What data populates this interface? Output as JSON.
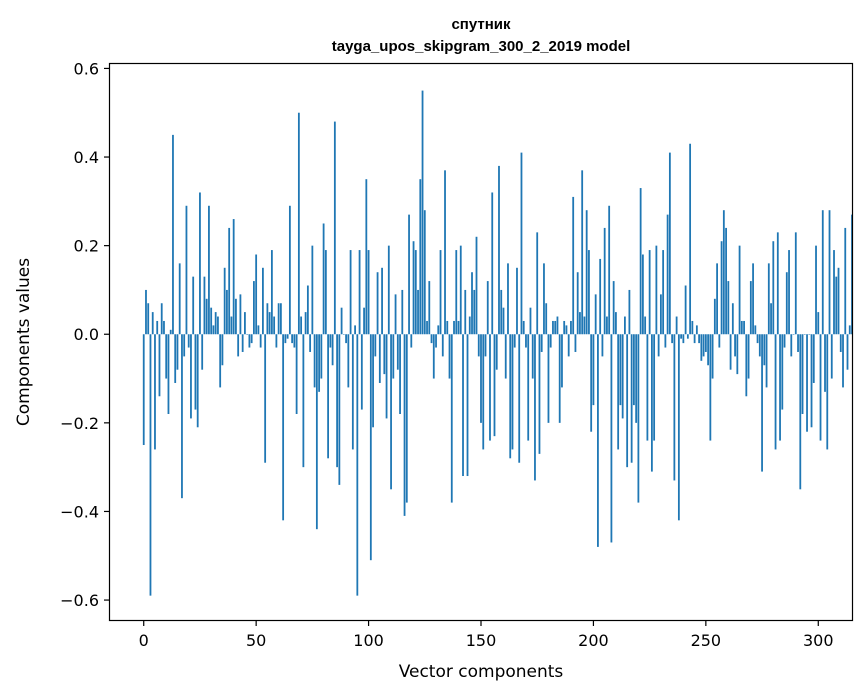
{
  "chart_data": {
    "type": "bar",
    "title": "спутник",
    "subtitle": "tayga_upos_skipgram_300_2_2019 model",
    "xlabel": "Vector components",
    "ylabel": "Components values",
    "xlim": [
      -15,
      315
    ],
    "ylim": [
      -0.645,
      0.61
    ],
    "xticks": [
      0,
      50,
      100,
      150,
      200,
      250,
      300
    ],
    "xtick_labels": [
      "0",
      "50",
      "100",
      "150",
      "200",
      "250",
      "300"
    ],
    "yticks": [
      -0.6,
      -0.4,
      -0.2,
      0.0,
      0.2,
      0.4,
      0.6
    ],
    "ytick_labels": [
      "−0.6",
      "−0.4",
      "−0.2",
      "0.0",
      "0.2",
      "0.4",
      "0.6"
    ],
    "bar_color": "#1f77b4",
    "grid": false,
    "values": [
      -0.25,
      0.1,
      0.07,
      -0.59,
      0.05,
      -0.26,
      0.03,
      -0.14,
      0.07,
      0.03,
      -0.1,
      -0.18,
      0.01,
      0.45,
      -0.11,
      -0.08,
      0.16,
      -0.37,
      -0.05,
      0.29,
      -0.03,
      -0.19,
      0.13,
      -0.17,
      -0.21,
      0.32,
      -0.08,
      0.13,
      0.08,
      0.29,
      0.06,
      0.02,
      0.05,
      0.04,
      -0.12,
      -0.07,
      0.15,
      0.1,
      0.24,
      0.04,
      0.26,
      0.08,
      -0.05,
      0.09,
      -0.04,
      0.05,
      0.0,
      -0.03,
      -0.02,
      0.12,
      0.18,
      0.02,
      -0.03,
      0.15,
      -0.29,
      0.07,
      0.05,
      0.19,
      0.04,
      -0.03,
      0.07,
      0.07,
      -0.42,
      -0.02,
      -0.01,
      0.29,
      -0.02,
      -0.03,
      -0.18,
      0.5,
      0.04,
      -0.3,
      0.05,
      0.11,
      -0.04,
      0.2,
      -0.12,
      -0.44,
      -0.13,
      -0.1,
      0.25,
      0.19,
      -0.28,
      -0.03,
      -0.07,
      0.48,
      -0.3,
      -0.34,
      0.06,
      0.0,
      -0.02,
      -0.12,
      0.19,
      -0.26,
      0.02,
      -0.59,
      0.19,
      -0.17,
      0.06,
      0.35,
      0.19,
      -0.51,
      -0.21,
      -0.05,
      0.14,
      -0.11,
      0.15,
      -0.09,
      -0.19,
      0.2,
      -0.35,
      -0.1,
      0.09,
      -0.08,
      -0.18,
      0.1,
      -0.41,
      -0.38,
      0.27,
      -0.03,
      0.21,
      0.19,
      0.1,
      0.35,
      0.55,
      0.28,
      0.03,
      0.12,
      -0.02,
      -0.1,
      -0.03,
      0.02,
      0.19,
      -0.05,
      0.37,
      0.03,
      -0.1,
      -0.38,
      0.03,
      0.19,
      0.03,
      0.2,
      -0.32,
      0.1,
      -0.32,
      0.04,
      0.14,
      0.1,
      0.22,
      -0.05,
      -0.2,
      -0.26,
      -0.05,
      0.12,
      -0.24,
      0.32,
      -0.23,
      -0.08,
      0.38,
      0.1,
      0.06,
      -0.1,
      0.16,
      -0.28,
      -0.26,
      -0.03,
      0.15,
      -0.29,
      0.41,
      0.03,
      -0.03,
      -0.24,
      0.06,
      -0.1,
      -0.33,
      0.23,
      -0.27,
      -0.04,
      0.16,
      0.07,
      -0.2,
      -0.03,
      0.03,
      0.03,
      0.04,
      -0.2,
      -0.12,
      0.03,
      0.02,
      -0.05,
      0.03,
      0.31,
      -0.04,
      0.14,
      0.05,
      0.37,
      0.04,
      0.28,
      0.19,
      -0.22,
      -0.16,
      0.09,
      -0.48,
      0.17,
      -0.05,
      0.24,
      0.04,
      0.29,
      -0.47,
      0.12,
      0.05,
      -0.26,
      -0.16,
      -0.19,
      0.04,
      -0.3,
      0.1,
      -0.29,
      -0.16,
      -0.2,
      -0.38,
      0.33,
      0.18,
      0.04,
      -0.24,
      0.19,
      -0.31,
      -0.24,
      0.2,
      -0.05,
      0.09,
      0.19,
      -0.03,
      0.27,
      0.41,
      -0.02,
      -0.33,
      0.04,
      -0.42,
      -0.01,
      -0.02,
      0.11,
      -0.01,
      0.43,
      0.03,
      -0.02,
      0.02,
      -0.02,
      -0.06,
      -0.05,
      -0.04,
      -0.07,
      -0.24,
      -0.1,
      0.08,
      0.16,
      -0.03,
      0.21,
      0.28,
      0.24,
      0.12,
      -0.08,
      0.07,
      -0.05,
      -0.09,
      0.2,
      0.03,
      0.03,
      -0.14,
      -0.1,
      0.12,
      0.16,
      0.02,
      -0.02,
      -0.05,
      -0.31,
      -0.07,
      -0.12,
      0.16,
      0.07,
      0.21,
      -0.26,
      0.23,
      -0.24,
      -0.17,
      -0.03,
      0.14,
      0.19,
      -0.05,
      0.0,
      0.23,
      -0.04,
      -0.35,
      -0.18,
      0.0,
      -0.22,
      0.0,
      -0.21,
      -0.11,
      0.2,
      0.05,
      -0.24,
      0.28,
      -0.13,
      -0.26,
      0.28,
      -0.1,
      0.19,
      0.13,
      0.15,
      -0.04,
      -0.12,
      0.24,
      -0.08,
      0.02,
      0.27
    ]
  }
}
